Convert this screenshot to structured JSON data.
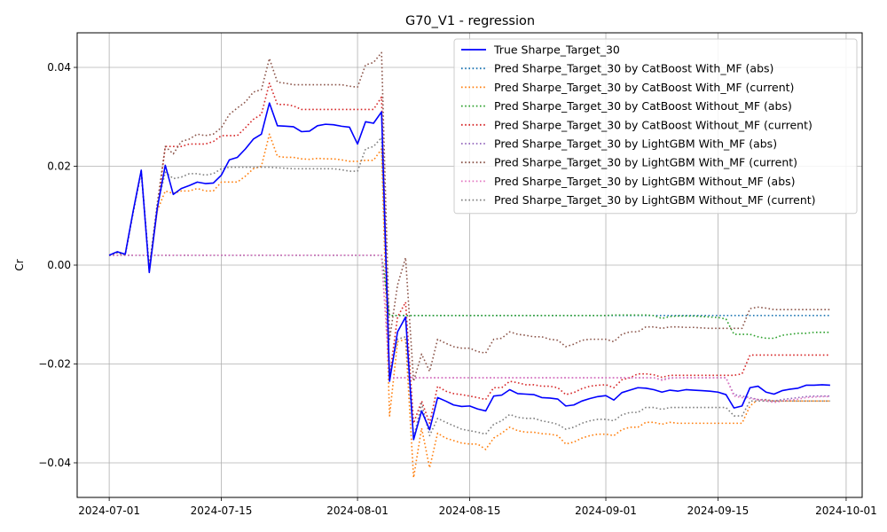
{
  "chart_data": {
    "type": "line",
    "title": "G70_V1 - regression",
    "xlabel": "",
    "ylabel": "Cr",
    "xlim": [
      "2024-06-27",
      "2024-10-03"
    ],
    "ylim": [
      -0.047,
      0.047
    ],
    "grid": true,
    "legend_position": "top-right",
    "x_ticks": [
      "2024-07-01",
      "2024-07-15",
      "2024-08-01",
      "2024-08-15",
      "2024-09-01",
      "2024-09-15",
      "2024-10-01"
    ],
    "y_ticks": [
      -0.04,
      -0.02,
      0.0,
      0.02,
      0.04
    ],
    "y_tick_labels": [
      "−0.04",
      "−0.02",
      "0.00",
      "0.02",
      "0.04"
    ],
    "x_start": "2024-07-01",
    "x_step_days": 1,
    "series": [
      {
        "name": "True Sharpe_Target_30",
        "color": "#0000ff",
        "style": "solid",
        "values": [
          0.002,
          0.0027,
          0.0022,
          0.011,
          0.0192,
          -0.0015,
          0.0115,
          0.0202,
          0.0143,
          0.0155,
          0.0161,
          0.0168,
          0.0165,
          0.0166,
          0.0182,
          0.0213,
          0.0218,
          0.0235,
          0.0255,
          0.0265,
          0.0328,
          0.0282,
          0.0281,
          0.028,
          0.027,
          0.0271,
          0.0282,
          0.0285,
          0.0284,
          0.0281,
          0.0279,
          0.0245,
          0.029,
          0.0287,
          0.031,
          -0.0235,
          -0.0135,
          -0.0105,
          -0.0353,
          -0.0295,
          -0.0333,
          -0.0268,
          -0.0275,
          -0.0283,
          -0.0286,
          -0.0285,
          -0.0291,
          -0.0295,
          -0.0265,
          -0.0263,
          -0.0252,
          -0.026,
          -0.0261,
          -0.0262,
          -0.0268,
          -0.0269,
          -0.0271,
          -0.0285,
          -0.0283,
          -0.0275,
          -0.027,
          -0.0266,
          -0.0264,
          -0.0273,
          -0.0258,
          -0.0253,
          -0.0248,
          -0.0249,
          -0.0252,
          -0.0257,
          -0.0253,
          -0.0255,
          -0.0252,
          -0.0253,
          -0.0254,
          -0.0255,
          -0.0257,
          -0.0262,
          -0.0289,
          -0.0285,
          -0.0248,
          -0.0245,
          -0.0257,
          -0.0261,
          -0.0254,
          -0.0251,
          -0.0249,
          -0.0243,
          -0.0243,
          -0.0242,
          -0.0243
        ]
      },
      {
        "name": "Pred Sharpe_Target_30 by CatBoost With_MF (abs)",
        "color": "#1f77b4",
        "style": "dotted",
        "values": [
          0.002,
          0.002,
          0.002,
          0.002,
          0.002,
          0.002,
          0.002,
          0.002,
          0.002,
          0.002,
          0.002,
          0.002,
          0.002,
          0.002,
          0.002,
          0.002,
          0.002,
          0.002,
          0.002,
          0.002,
          0.002,
          0.002,
          0.002,
          0.002,
          0.002,
          0.002,
          0.002,
          0.002,
          0.002,
          0.002,
          0.002,
          0.002,
          0.002,
          0.002,
          0.002,
          -0.0102,
          -0.0102,
          -0.0102,
          -0.0102,
          -0.0102,
          -0.0102,
          -0.0102,
          -0.0102,
          -0.0102,
          -0.0102,
          -0.0102,
          -0.0102,
          -0.0102,
          -0.0102,
          -0.0102,
          -0.0102,
          -0.0102,
          -0.0102,
          -0.0102,
          -0.0102,
          -0.0102,
          -0.0102,
          -0.0102,
          -0.0102,
          -0.0102,
          -0.0102,
          -0.0102,
          -0.0102,
          -0.0102,
          -0.0102,
          -0.0102,
          -0.0102,
          -0.0102,
          -0.0102,
          -0.0102,
          -0.0102,
          -0.0102,
          -0.0102,
          -0.0102,
          -0.0102,
          -0.0102,
          -0.0102,
          -0.0102,
          -0.0102,
          -0.0102,
          -0.0102,
          -0.0102,
          -0.0102,
          -0.0102,
          -0.0102,
          -0.0102,
          -0.0102,
          -0.0102,
          -0.0102,
          -0.0102,
          -0.0102
        ]
      },
      {
        "name": "Pred Sharpe_Target_30 by CatBoost With_MF (current)",
        "color": "#ff7f0e",
        "style": "dotted",
        "values": [
          0.002,
          0.0025,
          0.0021,
          0.0108,
          0.019,
          -0.001,
          0.011,
          0.015,
          0.0145,
          0.015,
          0.015,
          0.0155,
          0.015,
          0.015,
          0.0168,
          0.0168,
          0.0168,
          0.018,
          0.0195,
          0.02,
          0.0265,
          0.022,
          0.0218,
          0.0218,
          0.0215,
          0.0214,
          0.0216,
          0.0215,
          0.0215,
          0.0213,
          0.021,
          0.021,
          0.0212,
          0.0212,
          0.0235,
          -0.0305,
          -0.0155,
          -0.015,
          -0.043,
          -0.033,
          -0.041,
          -0.034,
          -0.035,
          -0.0355,
          -0.036,
          -0.0362,
          -0.0362,
          -0.0373,
          -0.035,
          -0.034,
          -0.0328,
          -0.0335,
          -0.0338,
          -0.0338,
          -0.0341,
          -0.0342,
          -0.0345,
          -0.0362,
          -0.0358,
          -0.035,
          -0.0345,
          -0.0342,
          -0.0342,
          -0.0345,
          -0.0333,
          -0.0328,
          -0.0328,
          -0.0318,
          -0.0318,
          -0.0322,
          -0.0318,
          -0.032,
          -0.032,
          -0.032,
          -0.032,
          -0.032,
          -0.032,
          -0.032,
          -0.032,
          -0.032,
          -0.0285,
          -0.0272,
          -0.0273,
          -0.0275,
          -0.0275,
          -0.0275,
          -0.0275,
          -0.0275,
          -0.0275,
          -0.0275,
          -0.0275
        ]
      },
      {
        "name": "Pred Sharpe_Target_30 by CatBoost Without_MF (abs)",
        "color": "#2ca02c",
        "style": "dotted",
        "values": [
          0.002,
          0.002,
          0.002,
          0.002,
          0.002,
          0.002,
          0.002,
          0.002,
          0.002,
          0.002,
          0.002,
          0.002,
          0.002,
          0.002,
          0.002,
          0.002,
          0.002,
          0.002,
          0.002,
          0.002,
          0.002,
          0.002,
          0.002,
          0.002,
          0.002,
          0.002,
          0.002,
          0.002,
          0.002,
          0.002,
          0.002,
          0.002,
          0.002,
          0.002,
          0.002,
          -0.0102,
          -0.0102,
          -0.0102,
          -0.0102,
          -0.0102,
          -0.0102,
          -0.0102,
          -0.0102,
          -0.0102,
          -0.0102,
          -0.0102,
          -0.0102,
          -0.0102,
          -0.0102,
          -0.0102,
          -0.0102,
          -0.0102,
          -0.0102,
          -0.0102,
          -0.0102,
          -0.0102,
          -0.0102,
          -0.0102,
          -0.0102,
          -0.0102,
          -0.0102,
          -0.0102,
          -0.0102,
          -0.0101,
          -0.0101,
          -0.0101,
          -0.0101,
          -0.0101,
          -0.0102,
          -0.0108,
          -0.0104,
          -0.0103,
          -0.0103,
          -0.0103,
          -0.0104,
          -0.0105,
          -0.0106,
          -0.0109,
          -0.014,
          -0.014,
          -0.014,
          -0.0145,
          -0.0148,
          -0.0148,
          -0.0142,
          -0.014,
          -0.0138,
          -0.0138,
          -0.0136,
          -0.0136,
          -0.0136
        ]
      },
      {
        "name": "Pred Sharpe_Target_30 by CatBoost Without_MF (current)",
        "color": "#d62728",
        "style": "dotted",
        "values": [
          0.002,
          0.0025,
          0.0021,
          0.0108,
          0.019,
          -0.0012,
          0.0112,
          0.024,
          0.024,
          0.024,
          0.0245,
          0.0245,
          0.0245,
          0.025,
          0.0262,
          0.0262,
          0.0262,
          0.0278,
          0.0295,
          0.0305,
          0.0368,
          0.0325,
          0.0325,
          0.0322,
          0.0315,
          0.0315,
          0.0315,
          0.0315,
          0.0315,
          0.0315,
          0.0315,
          0.0315,
          0.0315,
          0.0315,
          0.034,
          -0.0225,
          -0.0105,
          -0.0075,
          -0.032,
          -0.0275,
          -0.032,
          -0.0245,
          -0.0255,
          -0.026,
          -0.0262,
          -0.0265,
          -0.0268,
          -0.0272,
          -0.0248,
          -0.0248,
          -0.0235,
          -0.0238,
          -0.0242,
          -0.0242,
          -0.0245,
          -0.0245,
          -0.0248,
          -0.0262,
          -0.0258,
          -0.025,
          -0.0245,
          -0.0243,
          -0.0242,
          -0.0248,
          -0.0232,
          -0.0228,
          -0.022,
          -0.022,
          -0.0222,
          -0.0227,
          -0.0223,
          -0.0223,
          -0.0223,
          -0.0223,
          -0.0223,
          -0.0223,
          -0.0223,
          -0.0223,
          -0.0223,
          -0.022,
          -0.0182,
          -0.0182,
          -0.0182,
          -0.0182,
          -0.0182,
          -0.0182,
          -0.0182,
          -0.0182,
          -0.0182,
          -0.0182,
          -0.0182
        ]
      },
      {
        "name": "Pred Sharpe_Target_30 by LightGBM With_MF (abs)",
        "color": "#9467bd",
        "style": "dotted",
        "values": [
          0.002,
          0.002,
          0.002,
          0.002,
          0.002,
          0.002,
          0.002,
          0.002,
          0.002,
          0.002,
          0.002,
          0.002,
          0.002,
          0.002,
          0.002,
          0.002,
          0.002,
          0.002,
          0.002,
          0.002,
          0.002,
          0.002,
          0.002,
          0.002,
          0.002,
          0.002,
          0.002,
          0.002,
          0.002,
          0.002,
          0.002,
          0.002,
          0.002,
          0.002,
          0.002,
          -0.0228,
          -0.0228,
          -0.0228,
          -0.0228,
          -0.0228,
          -0.0228,
          -0.0228,
          -0.0228,
          -0.0228,
          -0.0228,
          -0.0228,
          -0.0228,
          -0.0228,
          -0.0228,
          -0.0228,
          -0.0228,
          -0.0228,
          -0.0228,
          -0.0228,
          -0.0228,
          -0.0228,
          -0.0228,
          -0.0228,
          -0.0228,
          -0.0228,
          -0.0228,
          -0.0228,
          -0.0228,
          -0.0228,
          -0.0228,
          -0.0228,
          -0.0228,
          -0.0228,
          -0.0228,
          -0.0232,
          -0.0228,
          -0.0228,
          -0.0228,
          -0.0228,
          -0.0228,
          -0.0228,
          -0.0228,
          -0.0228,
          -0.0262,
          -0.0265,
          -0.0268,
          -0.0272,
          -0.0272,
          -0.0275,
          -0.0272,
          -0.027,
          -0.0268,
          -0.0266,
          -0.0265,
          -0.0265,
          -0.0265
        ]
      },
      {
        "name": "Pred Sharpe_Target_30 by LightGBM With_MF (current)",
        "color": "#8c564b",
        "style": "dotted",
        "values": [
          0.002,
          0.0025,
          0.0021,
          0.0108,
          0.019,
          -0.0005,
          0.0125,
          0.024,
          0.0225,
          0.025,
          0.0255,
          0.0265,
          0.0262,
          0.0265,
          0.0278,
          0.0305,
          0.0318,
          0.033,
          0.035,
          0.0355,
          0.0418,
          0.037,
          0.0368,
          0.0365,
          0.0365,
          0.0365,
          0.0365,
          0.0365,
          0.0365,
          0.0365,
          0.0362,
          0.036,
          0.0405,
          0.041,
          0.043,
          -0.015,
          -0.004,
          0.0015,
          -0.0235,
          -0.018,
          -0.0215,
          -0.015,
          -0.0158,
          -0.0165,
          -0.0168,
          -0.0168,
          -0.0175,
          -0.0178,
          -0.015,
          -0.0148,
          -0.0135,
          -0.014,
          -0.0142,
          -0.0145,
          -0.0145,
          -0.015,
          -0.0152,
          -0.0165,
          -0.016,
          -0.0152,
          -0.015,
          -0.015,
          -0.015,
          -0.0155,
          -0.014,
          -0.0135,
          -0.0135,
          -0.0125,
          -0.0125,
          -0.0128,
          -0.0125,
          -0.0125,
          -0.0126,
          -0.0126,
          -0.0127,
          -0.0128,
          -0.0128,
          -0.0128,
          -0.0128,
          -0.0128,
          -0.0088,
          -0.0085,
          -0.0087,
          -0.009,
          -0.009,
          -0.009,
          -0.009,
          -0.009,
          -0.009,
          -0.009,
          -0.009
        ]
      },
      {
        "name": "Pred Sharpe_Target_30 by LightGBM Without_MF (abs)",
        "color": "#e377c2",
        "style": "dotted",
        "values": [
          0.002,
          0.002,
          0.002,
          0.002,
          0.002,
          0.002,
          0.002,
          0.002,
          0.002,
          0.002,
          0.002,
          0.002,
          0.002,
          0.002,
          0.002,
          0.002,
          0.002,
          0.002,
          0.002,
          0.002,
          0.002,
          0.002,
          0.002,
          0.002,
          0.002,
          0.002,
          0.002,
          0.002,
          0.002,
          0.002,
          0.002,
          0.002,
          0.002,
          0.002,
          0.002,
          -0.0228,
          -0.0228,
          -0.0228,
          -0.0228,
          -0.0228,
          -0.0228,
          -0.0228,
          -0.0228,
          -0.0228,
          -0.0228,
          -0.0228,
          -0.0228,
          -0.0228,
          -0.0228,
          -0.0228,
          -0.0228,
          -0.0228,
          -0.0228,
          -0.0228,
          -0.0228,
          -0.0228,
          -0.0228,
          -0.0228,
          -0.0228,
          -0.0228,
          -0.0228,
          -0.0228,
          -0.0228,
          -0.0228,
          -0.0228,
          -0.0228,
          -0.0228,
          -0.0228,
          -0.0228,
          -0.0233,
          -0.0229,
          -0.0228,
          -0.0228,
          -0.0228,
          -0.0228,
          -0.0228,
          -0.0228,
          -0.0228,
          -0.0265,
          -0.0268,
          -0.027,
          -0.0272,
          -0.0275,
          -0.0278,
          -0.0275,
          -0.0273,
          -0.0271,
          -0.0268,
          -0.0267,
          -0.0266,
          -0.0266
        ]
      },
      {
        "name": "Pred Sharpe_Target_30 by LightGBM Without_MF (current)",
        "color": "#7f7f7f",
        "style": "dotted",
        "values": [
          0.002,
          0.0025,
          0.0021,
          0.0108,
          0.019,
          -0.0008,
          0.012,
          0.0188,
          0.0175,
          0.0178,
          0.0185,
          0.0185,
          0.0182,
          0.0185,
          0.0195,
          0.0198,
          0.0198,
          0.0198,
          0.0198,
          0.0198,
          0.0198,
          0.0197,
          0.0196,
          0.0195,
          0.0195,
          0.0195,
          0.0195,
          0.0195,
          0.0195,
          0.0193,
          0.019,
          0.019,
          0.0235,
          0.024,
          0.0258,
          -0.0225,
          -0.015,
          -0.0145,
          -0.035,
          -0.028,
          -0.0345,
          -0.031,
          -0.0318,
          -0.0325,
          -0.0332,
          -0.0335,
          -0.0338,
          -0.0342,
          -0.0322,
          -0.0315,
          -0.0302,
          -0.0308,
          -0.031,
          -0.031,
          -0.0315,
          -0.0318,
          -0.0322,
          -0.0332,
          -0.0328,
          -0.032,
          -0.0315,
          -0.0312,
          -0.0312,
          -0.0315,
          -0.0303,
          -0.0298,
          -0.0298,
          -0.0288,
          -0.0288,
          -0.0292,
          -0.0288,
          -0.0288,
          -0.0288,
          -0.0288,
          -0.0288,
          -0.0288,
          -0.0288,
          -0.0288,
          -0.0305,
          -0.0305,
          -0.0275,
          -0.0275,
          -0.0275,
          -0.0275,
          -0.0275,
          -0.0275,
          -0.0275,
          -0.0275,
          -0.0275,
          -0.0275,
          -0.0275
        ]
      }
    ]
  }
}
